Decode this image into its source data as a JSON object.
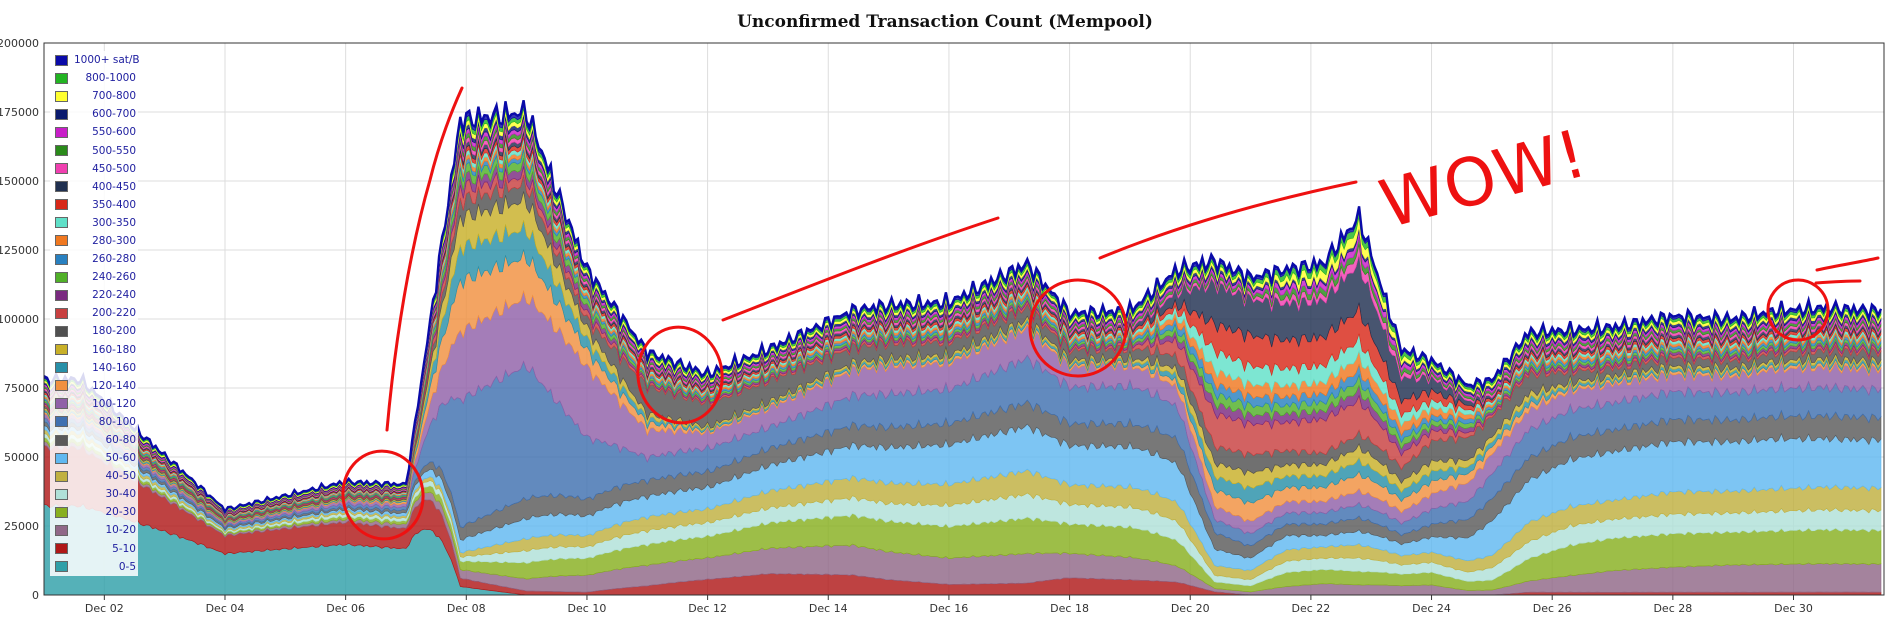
{
  "chart_data": {
    "type": "area",
    "stacked": true,
    "title": "Unconfirmed Transaction Count (Mempool)",
    "xlabel": "",
    "ylabel": "",
    "ylim": [
      0,
      200000
    ],
    "y_ticks": [
      "0",
      "25000",
      "50000",
      "75000",
      "100000",
      "125000",
      "150000",
      "175000",
      "200000"
    ],
    "x_ticks": [
      "Dec 02",
      "Dec 04",
      "Dec 06",
      "Dec 08",
      "Dec 10",
      "Dec 12",
      "Dec 14",
      "Dec 16",
      "Dec 18",
      "Dec 20",
      "Dec 22",
      "Dec 24",
      "Dec 26",
      "Dec 28",
      "Dec 30"
    ],
    "x_days": [
      0.6,
      3,
      5,
      6,
      6.9,
      8,
      9,
      10,
      11,
      12,
      13.4,
      14,
      15,
      16.3,
      17,
      18,
      18.8,
      19.4,
      20,
      20.6,
      21.2,
      21.8,
      22.5,
      23,
      23.6,
      24,
      24.6,
      25.3,
      26,
      27,
      28,
      28.7,
      29.5,
      30.4
    ],
    "total": [
      78000,
      31000,
      41000,
      40000,
      172000,
      175000,
      118000,
      88000,
      80000,
      89000,
      103000,
      105000,
      106000,
      120000,
      102000,
      103000,
      118000,
      121000,
      115000,
      118000,
      120000,
      137000,
      89000,
      85000,
      76000,
      78000,
      95000,
      96000,
      97000,
      101000,
      100000,
      103000,
      104000,
      103000
    ],
    "band_shares": {
      "0-5": [
        0.46,
        0.55,
        0.5,
        0.46,
        0.02,
        0,
        0,
        0,
        0,
        0,
        0,
        0,
        0,
        0,
        0,
        0,
        0,
        0,
        0,
        0,
        0,
        0,
        0,
        0,
        0,
        0,
        0,
        0,
        0,
        0,
        0,
        0,
        0,
        0
      ],
      "5-10": [
        0.3,
        0.24,
        0.22,
        0.2,
        0.02,
        0.01,
        0.01,
        0.04,
        0.08,
        0.1,
        0.08,
        0.06,
        0.04,
        0.04,
        0.07,
        0.06,
        0.04,
        0.01,
        0,
        0,
        0,
        0,
        0,
        0,
        0,
        0,
        0.01,
        0.01,
        0.01,
        0.01,
        0.01,
        0.01,
        0.01,
        0.01
      ],
      "10-20": [
        0.02,
        0.02,
        0.03,
        0.04,
        0.02,
        0.03,
        0.06,
        0.09,
        0.11,
        0.12,
        0.12,
        0.11,
        0.1,
        0.1,
        0.1,
        0.09,
        0.05,
        0.01,
        0.01,
        0.03,
        0.04,
        0.03,
        0.04,
        0.04,
        0.02,
        0.02,
        0.04,
        0.06,
        0.08,
        0.09,
        0.1,
        0.1,
        0.1,
        0.1
      ],
      "20-30": [
        0.02,
        0.02,
        0.03,
        0.03,
        0.02,
        0.04,
        0.06,
        0.09,
        0.11,
        0.12,
        0.12,
        0.12,
        0.12,
        0.12,
        0.12,
        0.12,
        0.08,
        0.02,
        0.02,
        0.05,
        0.05,
        0.04,
        0.05,
        0.05,
        0.04,
        0.04,
        0.08,
        0.11,
        0.12,
        0.12,
        0.12,
        0.12,
        0.12,
        0.12
      ],
      "30-40": [
        0.02,
        0.02,
        0.03,
        0.03,
        0.01,
        0.03,
        0.04,
        0.06,
        0.07,
        0.07,
        0.07,
        0.07,
        0.08,
        0.08,
        0.08,
        0.08,
        0.06,
        0.02,
        0.02,
        0.04,
        0.04,
        0.04,
        0.04,
        0.04,
        0.04,
        0.05,
        0.06,
        0.07,
        0.07,
        0.07,
        0.07,
        0.07,
        0.07,
        0.07
      ],
      "40-50": [
        0.02,
        0.02,
        0.02,
        0.02,
        0.01,
        0.03,
        0.04,
        0.06,
        0.07,
        0.08,
        0.08,
        0.08,
        0.08,
        0.08,
        0.08,
        0.08,
        0.06,
        0.03,
        0.03,
        0.04,
        0.04,
        0.04,
        0.04,
        0.04,
        0.05,
        0.05,
        0.07,
        0.07,
        0.07,
        0.08,
        0.08,
        0.08,
        0.08,
        0.08
      ],
      "50-60": [
        0.02,
        0.02,
        0.02,
        0.03,
        0.03,
        0.05,
        0.07,
        0.09,
        0.11,
        0.12,
        0.13,
        0.14,
        0.15,
        0.15,
        0.16,
        0.16,
        0.12,
        0.05,
        0.04,
        0.05,
        0.04,
        0.04,
        0.05,
        0.06,
        0.1,
        0.14,
        0.15,
        0.17,
        0.18,
        0.18,
        0.18,
        0.18,
        0.17,
        0.17
      ],
      "60-80": [
        0.02,
        0.02,
        0.02,
        0.03,
        0.03,
        0.05,
        0.06,
        0.07,
        0.08,
        0.08,
        0.08,
        0.08,
        0.08,
        0.08,
        0.09,
        0.09,
        0.08,
        0.05,
        0.04,
        0.04,
        0.04,
        0.04,
        0.04,
        0.05,
        0.08,
        0.09,
        0.08,
        0.08,
        0.08,
        0.08,
        0.08,
        0.08,
        0.08,
        0.08
      ],
      "80-100": [
        0.02,
        0.02,
        0.03,
        0.03,
        0.3,
        0.33,
        0.22,
        0.1,
        0.12,
        0.1,
        0.12,
        0.13,
        0.13,
        0.15,
        0.15,
        0.15,
        0.1,
        0.04,
        0.04,
        0.04,
        0.04,
        0.04,
        0.05,
        0.06,
        0.08,
        0.1,
        0.1,
        0.1,
        0.1,
        0.1,
        0.1,
        0.1,
        0.1,
        0.1
      ],
      "100-120": [
        0.02,
        0.02,
        0.03,
        0.03,
        0.16,
        0.17,
        0.25,
        0.12,
        0.08,
        0.09,
        0.1,
        0.11,
        0.1,
        0.1,
        0.08,
        0.08,
        0.06,
        0.04,
        0.04,
        0.04,
        0.04,
        0.04,
        0.05,
        0.06,
        0.08,
        0.08,
        0.07,
        0.07,
        0.07,
        0.06,
        0.06,
        0.07,
        0.07,
        0.07
      ],
      "120-140": [
        0.01,
        0.01,
        0.01,
        0.02,
        0.12,
        0.1,
        0.06,
        0.03,
        0.01,
        0.01,
        0.01,
        0.01,
        0.01,
        0.01,
        0.01,
        0.01,
        0.02,
        0.05,
        0.06,
        0.05,
        0.05,
        0.05,
        0.05,
        0.05,
        0.04,
        0.03,
        0.02,
        0.01,
        0.01,
        0.01,
        0.01,
        0.01,
        0.01,
        0.01
      ],
      "140-160": [
        0.01,
        0.01,
        0.01,
        0.01,
        0.08,
        0.07,
        0.04,
        0.02,
        0.01,
        0.01,
        0.01,
        0.01,
        0.01,
        0.01,
        0.01,
        0.01,
        0.02,
        0.04,
        0.05,
        0.04,
        0.04,
        0.04,
        0.04,
        0.04,
        0.03,
        0.02,
        0.02,
        0.01,
        0.01,
        0.01,
        0.01,
        0.01,
        0.01,
        0.01
      ],
      "160-180": [
        0.01,
        0.01,
        0.01,
        0.01,
        0.07,
        0.07,
        0.04,
        0.02,
        0.01,
        0.01,
        0.01,
        0.01,
        0.01,
        0.01,
        0.01,
        0.01,
        0.02,
        0.04,
        0.05,
        0.04,
        0.04,
        0.04,
        0.04,
        0.04,
        0.03,
        0.02,
        0.02,
        0.01,
        0.01,
        0.01,
        0.01,
        0.01,
        0.01,
        0.01
      ],
      "180-200": [
        0.01,
        0.01,
        0.01,
        0.01,
        0.04,
        0.04,
        0.03,
        0.12,
        0.12,
        0.1,
        0.06,
        0.06,
        0.05,
        0.04,
        0.04,
        0.04,
        0.04,
        0.05,
        0.06,
        0.05,
        0.04,
        0.04,
        0.06,
        0.08,
        0.1,
        0.08,
        0.07,
        0.04,
        0.03,
        0.03,
        0.03,
        0.03,
        0.03,
        0.03
      ],
      "200-220": [
        0.01,
        0.01,
        0.01,
        0.01,
        0.03,
        0.02,
        0.02,
        0.01,
        0.01,
        0.01,
        0.01,
        0.01,
        0.01,
        0.01,
        0.01,
        0.01,
        0.05,
        0.1,
        0.1,
        0.1,
        0.12,
        0.1,
        0.06,
        0.04,
        0.02,
        0.01,
        0.01,
        0.01,
        0.01,
        0.01,
        0.01,
        0.01,
        0.01,
        0.01
      ],
      "220-240": [
        0.01,
        0.01,
        0.01,
        0.01,
        0.02,
        0.02,
        0.02,
        0.01,
        0.01,
        0.01,
        0.01,
        0.01,
        0.01,
        0.01,
        0.01,
        0.01,
        0.02,
        0.03,
        0.03,
        0.03,
        0.03,
        0.03,
        0.03,
        0.02,
        0.02,
        0.01,
        0.01,
        0.01,
        0.01,
        0.01,
        0.01,
        0.01,
        0.01,
        0.01
      ],
      "240-260": [
        0.01,
        0.01,
        0.01,
        0.01,
        0.02,
        0.02,
        0.02,
        0.01,
        0.01,
        0.01,
        0.01,
        0.01,
        0.01,
        0.01,
        0.01,
        0.01,
        0.02,
        0.03,
        0.03,
        0.03,
        0.03,
        0.03,
        0.03,
        0.02,
        0.02,
        0.01,
        0.01,
        0.01,
        0.01,
        0.01,
        0.01,
        0.01,
        0.01,
        0.01
      ],
      "260-280": [
        0.01,
        0.01,
        0.01,
        0.01,
        0.01,
        0.01,
        0.01,
        0.01,
        0.01,
        0.01,
        0.01,
        0.01,
        0.01,
        0.01,
        0.01,
        0.01,
        0.02,
        0.03,
        0.03,
        0.03,
        0.03,
        0.03,
        0.03,
        0.02,
        0.02,
        0.01,
        0.01,
        0.01,
        0.01,
        0.01,
        0.01,
        0.01,
        0.01,
        0.01
      ],
      "280-300": [
        0.01,
        0.01,
        0.01,
        0.01,
        0.01,
        0.01,
        0.01,
        0.01,
        0.01,
        0.01,
        0.01,
        0.01,
        0.01,
        0.01,
        0.01,
        0.01,
        0.02,
        0.04,
        0.04,
        0.04,
        0.04,
        0.04,
        0.04,
        0.03,
        0.02,
        0.01,
        0.01,
        0.01,
        0.01,
        0.01,
        0.01,
        0.01,
        0.01,
        0.01
      ],
      "300-350": [
        0.01,
        0.01,
        0.01,
        0.01,
        0.01,
        0.01,
        0.01,
        0.01,
        0.01,
        0.01,
        0.01,
        0.01,
        0.01,
        0.01,
        0.01,
        0.01,
        0.02,
        0.06,
        0.06,
        0.06,
        0.06,
        0.05,
        0.04,
        0.03,
        0.02,
        0.01,
        0.01,
        0.01,
        0.01,
        0.01,
        0.01,
        0.01,
        0.01,
        0.01
      ],
      "350-400": [
        0.01,
        0.01,
        0.01,
        0.01,
        0.01,
        0.01,
        0.01,
        0.01,
        0.01,
        0.01,
        0.01,
        0.01,
        0.01,
        0.01,
        0.01,
        0.01,
        0.02,
        0.08,
        0.1,
        0.1,
        0.1,
        0.09,
        0.06,
        0.04,
        0.02,
        0.01,
        0.01,
        0.01,
        0.01,
        0.01,
        0.01,
        0.01,
        0.01,
        0.01
      ],
      "400-450": [
        0.01,
        0.01,
        0.01,
        0.01,
        0.01,
        0.01,
        0.01,
        0.01,
        0.01,
        0.01,
        0.01,
        0.01,
        0.01,
        0.01,
        0.01,
        0.01,
        0.04,
        0.12,
        0.12,
        0.13,
        0.13,
        0.14,
        0.1,
        0.05,
        0.02,
        0.01,
        0.01,
        0.01,
        0.01,
        0.01,
        0.01,
        0.01,
        0.01,
        0.01
      ],
      "450-500": [
        0.01,
        0.01,
        0.01,
        0.01,
        0.01,
        0.01,
        0.01,
        0.01,
        0.01,
        0.01,
        0.01,
        0.01,
        0.01,
        0.01,
        0.01,
        0.01,
        0.01,
        0.01,
        0.01,
        0.02,
        0.02,
        0.03,
        0.02,
        0.01,
        0.01,
        0.01,
        0.01,
        0.01,
        0.01,
        0.01,
        0.01,
        0.01,
        0.01,
        0.01
      ],
      "500-550": [
        0.01,
        0.01,
        0.01,
        0.01,
        0.01,
        0.01,
        0.01,
        0.01,
        0.01,
        0.01,
        0.01,
        0.01,
        0.01,
        0.01,
        0.01,
        0.01,
        0.01,
        0.01,
        0.01,
        0.02,
        0.02,
        0.02,
        0.02,
        0.01,
        0.01,
        0.01,
        0.01,
        0.01,
        0.01,
        0.01,
        0.01,
        0.01,
        0.01,
        0.01
      ],
      "550-600": [
        0.01,
        0.01,
        0.01,
        0.01,
        0.01,
        0.01,
        0.01,
        0.01,
        0.01,
        0.01,
        0.01,
        0.01,
        0.01,
        0.01,
        0.01,
        0.01,
        0.01,
        0.01,
        0.01,
        0.02,
        0.02,
        0.02,
        0.02,
        0.01,
        0.01,
        0.01,
        0.01,
        0.01,
        0.01,
        0.01,
        0.01,
        0.01,
        0.01,
        0.01
      ],
      "600-700": [
        0.01,
        0.01,
        0.01,
        0.01,
        0.01,
        0.01,
        0.01,
        0.01,
        0.01,
        0.01,
        0.01,
        0.01,
        0.01,
        0.01,
        0.01,
        0.01,
        0.01,
        0.01,
        0.01,
        0.01,
        0.01,
        0.01,
        0.01,
        0.01,
        0.01,
        0.01,
        0.01,
        0.01,
        0.01,
        0.01,
        0.01,
        0.01,
        0.01,
        0.01
      ],
      "700-800": [
        0.01,
        0.01,
        0.01,
        0.01,
        0.01,
        0.01,
        0.01,
        0.01,
        0.01,
        0.01,
        0.01,
        0.01,
        0.01,
        0.01,
        0.01,
        0.01,
        0.01,
        0.01,
        0.01,
        0.02,
        0.03,
        0.03,
        0.02,
        0.01,
        0.01,
        0.01,
        0.01,
        0.01,
        0.01,
        0.01,
        0.01,
        0.01,
        0.01,
        0.01
      ],
      "800-1000": [
        0.01,
        0.01,
        0.01,
        0.01,
        0.01,
        0.01,
        0.01,
        0.01,
        0.01,
        0.01,
        0.01,
        0.01,
        0.01,
        0.01,
        0.01,
        0.01,
        0.01,
        0.01,
        0.01,
        0.02,
        0.02,
        0.02,
        0.02,
        0.01,
        0.01,
        0.01,
        0.01,
        0.01,
        0.01,
        0.01,
        0.01,
        0.01,
        0.01,
        0.01
      ],
      "1000+ sat/B": [
        0.01,
        0.01,
        0.01,
        0.01,
        0.01,
        0.01,
        0.01,
        0.01,
        0.01,
        0.01,
        0.01,
        0.01,
        0.01,
        0.01,
        0.01,
        0.01,
        0.01,
        0.01,
        0.01,
        0.01,
        0.01,
        0.01,
        0.01,
        0.01,
        0.01,
        0.01,
        0.01,
        0.01,
        0.01,
        0.01,
        0.01,
        0.01,
        0.01,
        0.01
      ]
    },
    "legend_position": "top-left",
    "grid": true,
    "legend": [
      {
        "label": "1000+ sat/B",
        "color": "#0a0aa8"
      },
      {
        "label": "800-1000",
        "color": "#22b422"
      },
      {
        "label": "700-800",
        "color": "#ffff30"
      },
      {
        "label": "600-700",
        "color": "#0a1a6e"
      },
      {
        "label": "550-600",
        "color": "#c81ec8"
      },
      {
        "label": "500-550",
        "color": "#2a8a1a"
      },
      {
        "label": "450-500",
        "color": "#f040b0"
      },
      {
        "label": "400-450",
        "color": "#203050"
      },
      {
        "label": "350-400",
        "color": "#d82818"
      },
      {
        "label": "300-350",
        "color": "#60e0c8"
      },
      {
        "label": "280-300",
        "color": "#f07820"
      },
      {
        "label": "260-280",
        "color": "#2880c0"
      },
      {
        "label": "240-260",
        "color": "#50b028"
      },
      {
        "label": "220-240",
        "color": "#7a2a80"
      },
      {
        "label": "200-220",
        "color": "#c84040"
      },
      {
        "label": "180-200",
        "color": "#505050"
      },
      {
        "label": "160-180",
        "color": "#c8b028"
      },
      {
        "label": "140-160",
        "color": "#2890a8"
      },
      {
        "label": "120-140",
        "color": "#f09040"
      },
      {
        "label": "100-120",
        "color": "#9060a8"
      },
      {
        "label": "80-100",
        "color": "#4070b0"
      },
      {
        "label": "60-80",
        "color": "#5a5a5a"
      },
      {
        "label": "50-60",
        "color": "#60b8f0"
      },
      {
        "label": "40-50",
        "color": "#c0b040"
      },
      {
        "label": "30-40",
        "color": "#b0e0d8"
      },
      {
        "label": "20-30",
        "color": "#88b020"
      },
      {
        "label": "10-20",
        "color": "#906888"
      },
      {
        "label": "5-10",
        "color": "#b01818"
      },
      {
        "label": "0-5",
        "color": "#30a0a8"
      }
    ],
    "annotations": [
      "WOW!"
    ],
    "total_line_color": "#0a0aa8",
    "annotation_color": "#ee1111"
  }
}
